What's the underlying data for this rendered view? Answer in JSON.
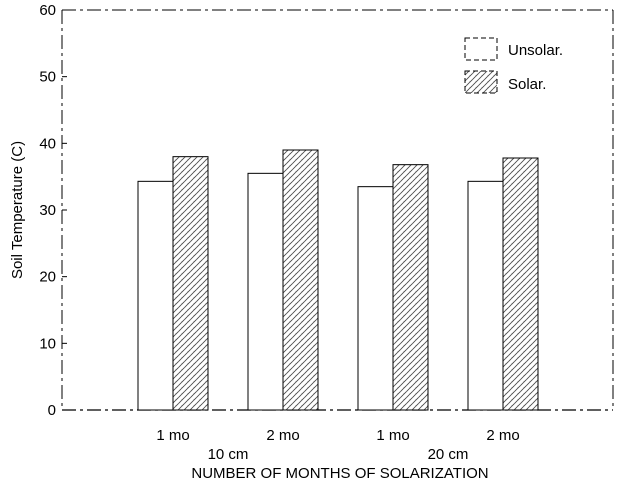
{
  "chart_data": {
    "type": "bar",
    "title": "",
    "ylabel": "Soil Temperature (C)",
    "xlabel": "NUMBER OF MONTHS OF SOLARIZATION",
    "ylim": [
      0,
      60
    ],
    "yticks": [
      0,
      10,
      20,
      30,
      40,
      50,
      60
    ],
    "categories": [
      "1 mo",
      "2 mo",
      "1 mo",
      "2 mo"
    ],
    "groups": [
      {
        "label": "10 cm",
        "categories": [
          "1 mo",
          "2 mo"
        ]
      },
      {
        "label": "20 cm",
        "categories": [
          "1 mo",
          "2 mo"
        ]
      }
    ],
    "series": [
      {
        "name": "Unsolar.",
        "values": [
          34.3,
          35.5,
          33.5,
          34.3
        ],
        "pattern": "none"
      },
      {
        "name": "Solar.",
        "values": [
          38.0,
          39.0,
          36.8,
          37.8
        ],
        "pattern": "hatch"
      }
    ],
    "legend": "top-right",
    "grid": false
  }
}
